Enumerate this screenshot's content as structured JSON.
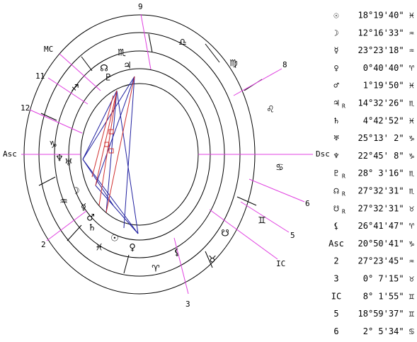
{
  "wheel": {
    "cusp_labels": [
      "9",
      "8",
      "6",
      "5",
      "3",
      "2",
      "12",
      "11"
    ],
    "angle_labels": [
      "MC",
      "Asc",
      "Dsc",
      "IC"
    ],
    "sign_glyphs": [
      "♎",
      "♍",
      "♌",
      "♋",
      "♊",
      "♉",
      "♈",
      "♓",
      "♒",
      "♑",
      "♐",
      "♏"
    ],
    "planet_glyphs": [
      "☊",
      "♃",
      "♇",
      "♆",
      "♅",
      "☽",
      "☿",
      "♂",
      "♄",
      "☉",
      "♀",
      "⚸",
      "☋"
    ]
  },
  "positions": [
    {
      "symbol": "☉",
      "position": "18°19'40\" ♓"
    },
    {
      "symbol": "☽",
      "position": "12°16'33\" ♒"
    },
    {
      "symbol": "☿",
      "position": "23°23'18\" ♒"
    },
    {
      "symbol": "♀",
      "position": " 0°40'40\" ♈"
    },
    {
      "symbol": "♂",
      "position": " 1°19'50\" ♓"
    },
    {
      "symbol": "♃",
      "retrograde": "R",
      "position": "14°32'26\" ♏"
    },
    {
      "symbol": "♄",
      "position": " 4°42'52\" ♓"
    },
    {
      "symbol": "♅",
      "position": "25°13' 2\" ♑"
    },
    {
      "symbol": "♆",
      "position": "22°45' 8\" ♑"
    },
    {
      "symbol": "♇",
      "retrograde": "R",
      "position": "28° 3'16\" ♏"
    },
    {
      "symbol": "☊",
      "retrograde": "R",
      "position": "27°32'31\" ♏"
    },
    {
      "symbol": "☋",
      "retrograde": "R",
      "position": "27°32'31\" ♉"
    },
    {
      "symbol": "⚸",
      "position": "26°41'47\" ♈"
    },
    {
      "symbol": "Asc",
      "position": "20°50'41\" ♑"
    },
    {
      "symbol": "2",
      "position": "27°23'45\" ♒"
    },
    {
      "symbol": "3",
      "position": " 0° 7'15\" ♉"
    },
    {
      "symbol": "IC",
      "position": " 8° 1'55\" ♊"
    },
    {
      "symbol": "5",
      "position": "18°59'37\" ♊"
    },
    {
      "symbol": "6",
      "position": " 2° 5'34\" ♋"
    }
  ]
}
